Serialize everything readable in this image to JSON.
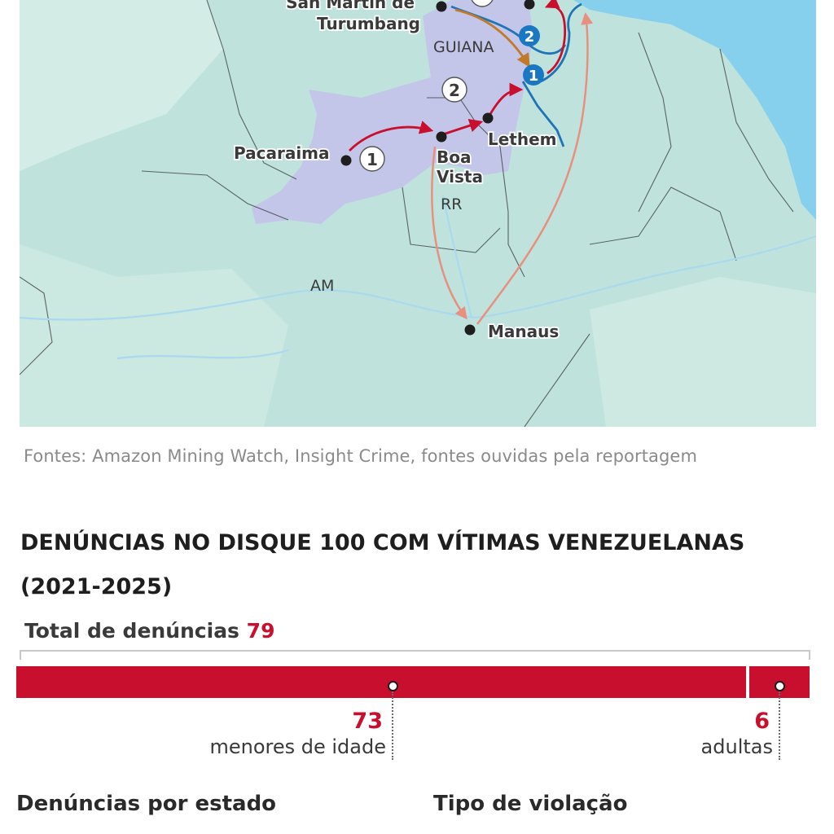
{
  "map": {
    "places": {
      "san_martin": "San Martin de\nTurumbang",
      "pacaraima": "Pacaraima",
      "boa_vista": "Boa\nVista",
      "lethem": "Lethem",
      "manaus": "Manaus"
    },
    "regions": {
      "guiana": "GUIANA",
      "rr": "RR",
      "am": "AM"
    },
    "route_badges": [
      "1",
      "2",
      "2",
      "1"
    ],
    "colors": {
      "ocean": "#86d0ee",
      "land": "#bfe3dc",
      "highlight": "#c4c2ea",
      "route_main": "#c8102e",
      "route_light": "#e8907f",
      "route_orange": "#c07a2a",
      "river": "#1f73b7",
      "badge_blue": "#1a78c2"
    }
  },
  "source_text": "Fontes: Amazon Mining Watch, Insight Crime, fontes ouvidas pela reportagem",
  "chart_data": {
    "type": "bar",
    "title": "DENÚNCIAS NO DISQUE 100 COM VÍTIMAS VENEZUELANAS (2021-2025)",
    "total_label": "Total de denúncias",
    "total": 79,
    "categories": [
      "menores de idade",
      "adultas"
    ],
    "values": [
      73,
      6
    ],
    "colors": {
      "bar": "#c8102e"
    }
  },
  "sections": {
    "by_state": "Denúncias por estado",
    "violation_type": "Tipo de violação"
  }
}
